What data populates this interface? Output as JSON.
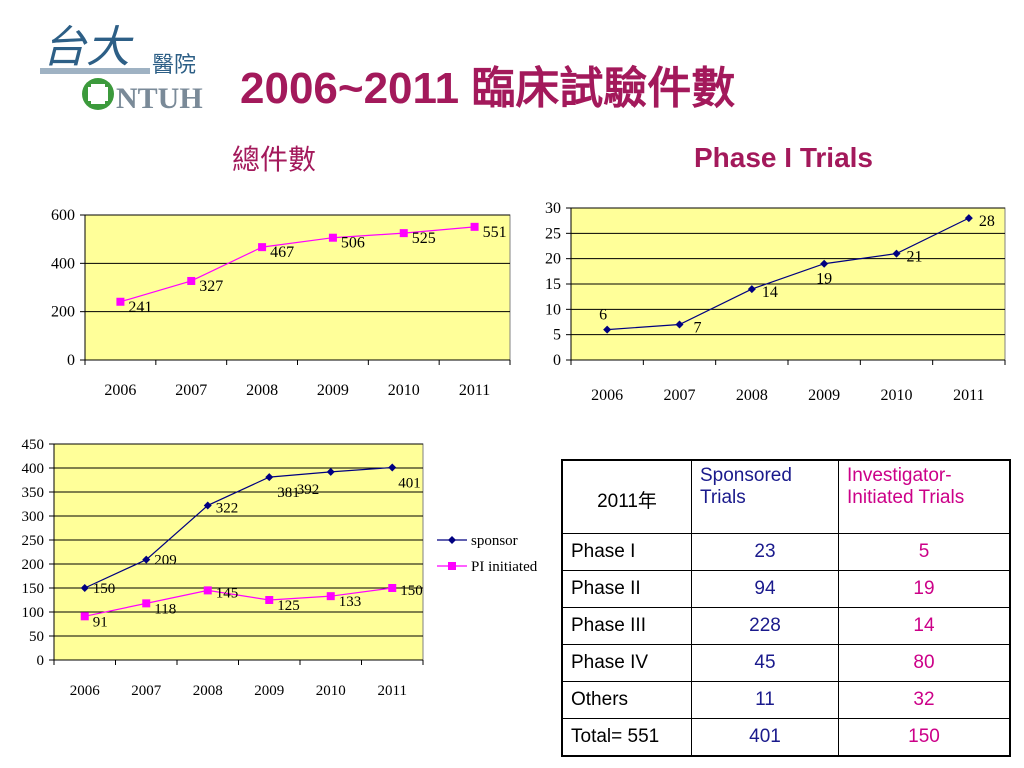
{
  "header": {
    "title": "2006~2011  臨床試驗件數",
    "logo_text": [
      "台大",
      "醫院",
      "NTUH"
    ]
  },
  "charts": {
    "total_title": "總件數",
    "phase1_title": "Phase I Trials"
  },
  "chart_data": [
    {
      "type": "line",
      "title": "總件數",
      "categories": [
        "2006",
        "2007",
        "2008",
        "2009",
        "2010",
        "2011"
      ],
      "series": [
        {
          "values": [
            241,
            327,
            467,
            506,
            525,
            551
          ]
        }
      ],
      "ylim": [
        0,
        600
      ],
      "yticks": [
        0,
        200,
        400,
        600
      ],
      "grid": true,
      "colors": {
        "series": "#ff00ff",
        "plot_bg": "#ffff99"
      }
    },
    {
      "type": "line",
      "title": "Phase I Trials",
      "categories": [
        "2006",
        "2007",
        "2008",
        "2009",
        "2010",
        "2011"
      ],
      "series": [
        {
          "values": [
            6,
            7,
            14,
            19,
            21,
            28
          ]
        }
      ],
      "ylim": [
        0,
        30
      ],
      "yticks": [
        0,
        5,
        10,
        15,
        20,
        25,
        30
      ],
      "grid": true,
      "colors": {
        "series": "#000080",
        "plot_bg": "#ffff99"
      }
    },
    {
      "type": "line",
      "categories": [
        "2006",
        "2007",
        "2008",
        "2009",
        "2010",
        "2011"
      ],
      "series": [
        {
          "name": "sponsor",
          "values": [
            150,
            209,
            322,
            381,
            392,
            401
          ]
        },
        {
          "name": "PI initiated",
          "values": [
            91,
            118,
            145,
            125,
            133,
            150
          ]
        }
      ],
      "ylim": [
        0,
        450
      ],
      "yticks": [
        0,
        50,
        100,
        150,
        200,
        250,
        300,
        350,
        400,
        450
      ],
      "grid": true,
      "legend": "right",
      "colors": {
        "sponsor": "#000080",
        "pi": "#ff00ff",
        "plot_bg": "#ffff99"
      }
    }
  ],
  "table": {
    "headers": [
      "2011年",
      "Sponsored Trials",
      "Investigator-Initiated Trials"
    ],
    "rows": [
      {
        "label": "Phase I",
        "sponsored": "23",
        "investigator": "5"
      },
      {
        "label": "Phase II",
        "sponsored": "94",
        "investigator": "19"
      },
      {
        "label": "Phase III",
        "sponsored": "228",
        "investigator": "14"
      },
      {
        "label": "Phase IV",
        "sponsored": "45",
        "investigator": "80"
      },
      {
        "label": "Others",
        "sponsored": "11",
        "investigator": "32"
      },
      {
        "label": "Total= 551",
        "sponsored": "401",
        "investigator": "150"
      }
    ]
  }
}
